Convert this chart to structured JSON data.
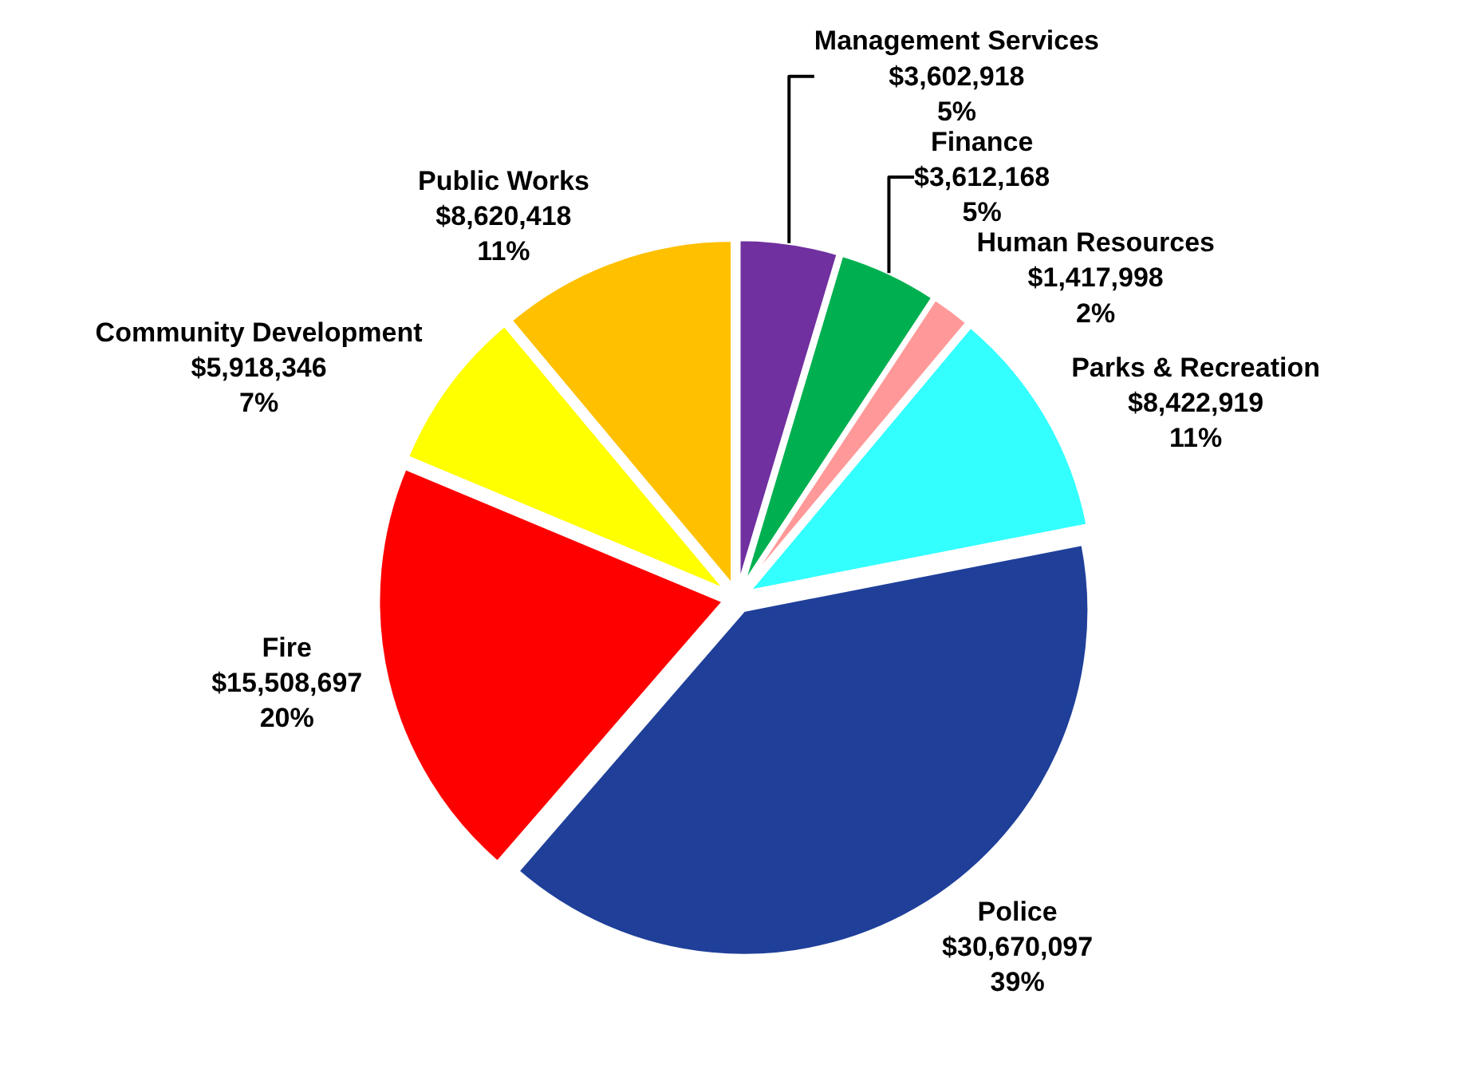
{
  "chart_data": {
    "type": "pie",
    "categories": [
      "Management Services",
      "Finance",
      "Human Resources",
      "Parks & Recreation",
      "Police",
      "Fire",
      "Community Development",
      "Public Works"
    ],
    "values": [
      3602918,
      3612168,
      1417998,
      8422919,
      30670097,
      15508697,
      5918346,
      8620418
    ],
    "value_labels": [
      "$3,602,918\n5%",
      "$3,612,168\n5%",
      "$1,417,998\n2%",
      "$8,422,919\n11%",
      "$30,670,097\n39%",
      "$15,508,697\n20%",
      "$5,918,346\n7%",
      "$8,620,418\n11%"
    ],
    "colors": [
      "#7030a0",
      "#00b050",
      "#ff9999",
      "#33ffff",
      "#1f3f99",
      "#ff0000",
      "#ffff00",
      "#ffc000"
    ],
    "legend": false
  }
}
